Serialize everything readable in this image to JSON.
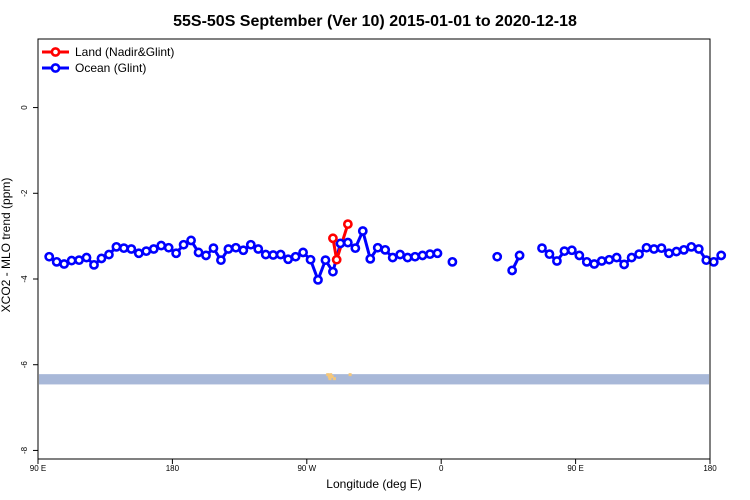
{
  "chart_data": {
    "type": "line",
    "title": "55S-50S September (Ver 10)   2015-01-01 to 2020-12-18",
    "xlabel": "Longitude (deg E)",
    "ylabel": "XCO2 - MLO trend (ppm)",
    "xlim": [
      90,
      450
    ],
    "ylim": [
      -8.2,
      1.6
    ],
    "x_ticks": [
      {
        "value": 90,
        "label": "90 E"
      },
      {
        "value": 180,
        "label": "180"
      },
      {
        "value": 270,
        "label": "90 W"
      },
      {
        "value": 360,
        "label": "0"
      },
      {
        "value": 450,
        "label": "90 E"
      },
      {
        "value": 540,
        "label": "180"
      }
    ],
    "y_ticks": [
      {
        "value": 0,
        "label": "0"
      },
      {
        "value": -2,
        "label": "-2"
      },
      {
        "value": -4,
        "label": "-4"
      },
      {
        "value": -6,
        "label": "-6"
      },
      {
        "value": -8,
        "label": "-8"
      }
    ],
    "legend_position": "top-left",
    "series": [
      {
        "name": "Land (Nadir&Glint)",
        "color": "#ff0000",
        "x": [
          287.5,
          290,
          297.5
        ],
        "y": [
          -3.05,
          -3.55,
          -2.72
        ]
      },
      {
        "name": "Ocean (Glint)",
        "color": "#0000ff",
        "segments": [
          {
            "x": [
              97.5,
              102.5,
              107.5,
              112.5,
              117.5,
              122.5,
              127.5,
              132.5,
              137.5,
              142.5,
              147.5,
              152.5,
              157.5,
              162.5,
              167.5,
              172.5,
              177.5,
              182.5,
              187.5,
              192.5,
              197.5,
              202.5,
              207.5,
              212.5,
              217.5,
              222.5,
              227.5,
              232.5,
              237.5,
              242.5,
              247.5,
              252.5,
              257.5,
              262.5,
              267.5,
              272.5,
              277.5,
              282.5,
              287.5,
              292.5,
              297.5,
              302.5,
              307.5,
              312.5,
              317.5,
              322.5,
              327.5,
              332.5,
              337.5,
              342.5,
              347.5,
              352.5,
              357.5
            ],
            "y": [
              -3.48,
              -3.6,
              -3.65,
              -3.57,
              -3.56,
              -3.5,
              -3.67,
              -3.52,
              -3.43,
              -3.25,
              -3.28,
              -3.3,
              -3.4,
              -3.35,
              -3.3,
              -3.22,
              -3.27,
              -3.4,
              -3.2,
              -3.1,
              -3.38,
              -3.45,
              -3.28,
              -3.56,
              -3.3,
              -3.27,
              -3.33,
              -3.2,
              -3.3,
              -3.43,
              -3.44,
              -3.43,
              -3.54,
              -3.48,
              -3.38,
              -3.55,
              -4.02,
              -3.56,
              -3.83,
              -3.17,
              -3.15,
              -3.28,
              -2.88,
              -3.53,
              -3.27,
              -3.32,
              -3.5,
              -3.43,
              -3.5,
              -3.48,
              -3.45,
              -3.42,
              -3.4
            ]
          },
          {
            "x": [
              367.5
            ],
            "y": [
              -3.6
            ]
          },
          {
            "x": [
              397.5
            ],
            "y": [
              -3.48
            ]
          },
          {
            "x": [
              407.5,
              412.5
            ],
            "y": [
              -3.8,
              -3.45
            ]
          },
          {
            "x": [
              427.5,
              432.5,
              437.5,
              442.5,
              447.5,
              452.5,
              457.5,
              462.5,
              467.5,
              472.5,
              477.5,
              482.5,
              487.5,
              492.5,
              497.5,
              502.5,
              507.5,
              512.5,
              517.5,
              522.5,
              527.5,
              532.5,
              537.5,
              542.5,
              547.5
            ],
            "y": [
              -3.28,
              -3.42,
              -3.58,
              -3.35,
              -3.33,
              -3.45,
              -3.6,
              -3.65,
              -3.58,
              -3.55,
              -3.5,
              -3.66,
              -3.5,
              -3.42,
              -3.27,
              -3.3,
              -3.28,
              -3.4,
              -3.36,
              -3.32,
              -3.25,
              -3.3,
              -3.56,
              -3.6,
              -3.45
            ]
          }
        ]
      }
    ],
    "map_strip": {
      "y_range": [
        -6.22,
        -6.46
      ],
      "fill": "#a8b8d8",
      "land_x": [
        283,
        284,
        284.5,
        285,
        286,
        287.5,
        298
      ]
    }
  }
}
